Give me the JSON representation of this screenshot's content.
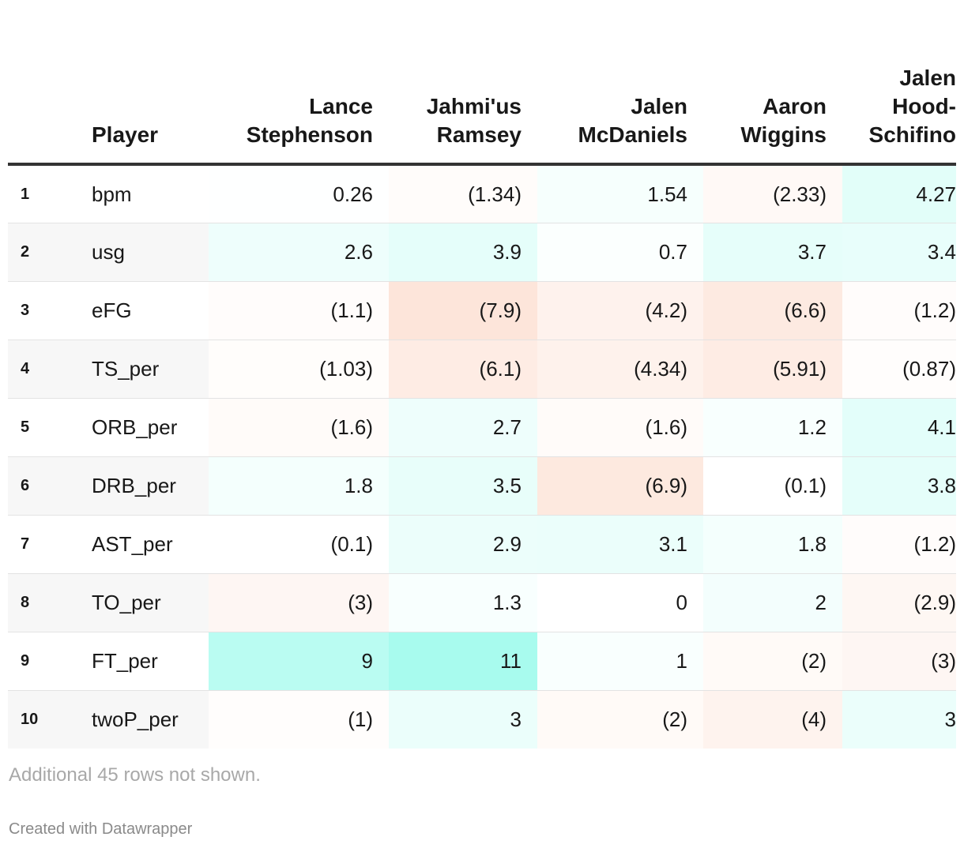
{
  "chart_data": {
    "type": "table",
    "columns": [
      "Player",
      "Lance Stephenson",
      "Jahmi'us Ramsey",
      "Jalen McDaniels",
      "Aaron Wiggins",
      "Jalen Hood-Schifino"
    ],
    "header_lines": [
      [
        "Lance",
        "Stephenson"
      ],
      [
        "Jahmi'us",
        "Ramsey"
      ],
      [
        "Jalen",
        "McDaniels"
      ],
      [
        "Aaron",
        "Wiggins"
      ],
      [
        "Jalen",
        "Hood-",
        "Schifino"
      ]
    ],
    "rows": [
      {
        "rank": "1",
        "stat": "bpm",
        "values": [
          0.26,
          -1.34,
          1.54,
          -2.33,
          4.27
        ],
        "display": [
          "0.26",
          "(1.34)",
          "1.54",
          "(2.33)",
          "4.27"
        ]
      },
      {
        "rank": "2",
        "stat": "usg",
        "values": [
          2.6,
          3.9,
          0.7,
          3.7,
          3.4
        ],
        "display": [
          "2.6",
          "3.9",
          "0.7",
          "3.7",
          "3.4"
        ]
      },
      {
        "rank": "3",
        "stat": "eFG",
        "values": [
          -1.1,
          -7.9,
          -4.2,
          -6.6,
          -1.2
        ],
        "display": [
          "(1.1)",
          "(7.9)",
          "(4.2)",
          "(6.6)",
          "(1.2)"
        ]
      },
      {
        "rank": "4",
        "stat": "TS_per",
        "values": [
          -1.03,
          -6.1,
          -4.34,
          -5.91,
          -0.87
        ],
        "display": [
          "(1.03)",
          "(6.1)",
          "(4.34)",
          "(5.91)",
          "(0.87)"
        ]
      },
      {
        "rank": "5",
        "stat": "ORB_per",
        "values": [
          -1.6,
          2.7,
          -1.6,
          1.2,
          4.1
        ],
        "display": [
          "(1.6)",
          "2.7",
          "(1.6)",
          "1.2",
          "4.1"
        ]
      },
      {
        "rank": "6",
        "stat": "DRB_per",
        "values": [
          1.8,
          3.5,
          -6.9,
          -0.1,
          3.8
        ],
        "display": [
          "1.8",
          "3.5",
          "(6.9)",
          "(0.1)",
          "3.8"
        ]
      },
      {
        "rank": "7",
        "stat": "AST_per",
        "values": [
          -0.1,
          2.9,
          3.1,
          1.8,
          -1.2
        ],
        "display": [
          "(0.1)",
          "2.9",
          "3.1",
          "1.8",
          "(1.2)"
        ]
      },
      {
        "rank": "8",
        "stat": "TO_per",
        "values": [
          -3,
          1.3,
          0,
          2,
          -2.9
        ],
        "display": [
          "(3)",
          "1.3",
          "0",
          "2",
          "(2.9)"
        ]
      },
      {
        "rank": "9",
        "stat": "FT_per",
        "values": [
          9,
          11,
          1,
          -2,
          -3
        ],
        "display": [
          "9",
          "11",
          "1",
          "(2)",
          "(3)"
        ]
      },
      {
        "rank": "10",
        "stat": "twoP_per",
        "values": [
          -1,
          3,
          -2,
          -4,
          3
        ],
        "display": [
          "(1)",
          "3",
          "(2)",
          "(4)",
          "3"
        ]
      }
    ],
    "colors": {
      "positive": "#a8fbee",
      "negative": "#fde5da",
      "row_stripe": "#f7f7f7",
      "header_rule": "#333333"
    }
  },
  "notes": "Additional 45 rows not shown.",
  "footer": "Created with Datawrapper"
}
